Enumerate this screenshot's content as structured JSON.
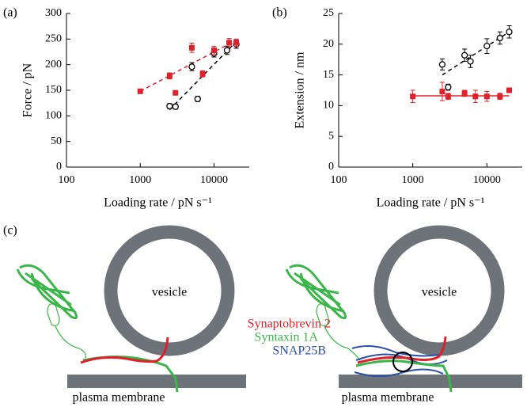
{
  "chart_data": [
    {
      "type": "scatter",
      "panel_label": "(a)",
      "y_label": "Force / pN",
      "x_label": "Loading rate / pN s⁻¹",
      "xscale": "log",
      "xlim": [
        100,
        30000
      ],
      "xticks": [
        100,
        1000,
        10000
      ],
      "ylim": [
        0,
        300
      ],
      "yticks": [
        0,
        50,
        100,
        150,
        200,
        250,
        300
      ],
      "series": [
        {
          "color": "#000000",
          "marker": "circle",
          "x": [
            2500,
            3000,
            5000,
            6000,
            10000,
            15000,
            20000
          ],
          "values": [
            119,
            118,
            196,
            133,
            222,
            228,
            240
          ],
          "errors": [
            5,
            5,
            8,
            5,
            7,
            8,
            8
          ]
        },
        {
          "color": "#e0202a",
          "marker": "square",
          "x": [
            1000,
            2500,
            3000,
            5000,
            7000,
            10000,
            16000,
            20000
          ],
          "values": [
            148,
            178,
            145,
            233,
            182,
            228,
            243,
            243
          ],
          "errors": [
            3,
            6,
            4,
            9,
            6,
            8,
            8,
            7
          ]
        }
      ],
      "fits": [
        {
          "color": "#000000",
          "dash": true,
          "x": [
            2500,
            20000
          ],
          "values": [
            112,
            245
          ]
        },
        {
          "color": "#e0202a",
          "dash": true,
          "x": [
            1000,
            20000
          ],
          "values": [
            148,
            248
          ]
        }
      ]
    },
    {
      "type": "scatter",
      "panel_label": "(b)",
      "y_label": "Extension / nm",
      "x_label": "Loading rate / pN s⁻¹",
      "xscale": "log",
      "xlim": [
        100,
        30000
      ],
      "xticks": [
        100,
        1000,
        10000
      ],
      "ylim": [
        0,
        25
      ],
      "yticks": [
        0,
        5,
        10,
        15,
        20,
        25
      ],
      "series": [
        {
          "color": "#000000",
          "marker": "circle",
          "x": [
            2500,
            3000,
            5000,
            6000,
            10000,
            15000,
            20000
          ],
          "values": [
            16.7,
            13,
            18.2,
            17.2,
            19.7,
            21,
            22
          ],
          "errors": [
            0.9,
            0.5,
            1,
            1,
            1.2,
            1,
            1
          ]
        },
        {
          "color": "#e0202a",
          "marker": "square",
          "x": [
            1000,
            2500,
            3000,
            5000,
            7000,
            10000,
            15000,
            20000
          ],
          "values": [
            11.5,
            12.3,
            11.5,
            12,
            11.5,
            11.5,
            11.5,
            12.5
          ],
          "errors": [
            1,
            1.5,
            0.5,
            0.5,
            1,
            0.8,
            0.5,
            0.3
          ]
        }
      ],
      "fits": [
        {
          "color": "#000000",
          "dash": true,
          "x": [
            2500,
            20000
          ],
          "values": [
            15,
            22
          ]
        },
        {
          "color": "#e0202a",
          "dash": false,
          "x": [
            1000,
            20000
          ],
          "values": [
            11.6,
            11.6
          ]
        }
      ]
    }
  ],
  "diagram": {
    "panel_label": "(c)",
    "left": {
      "vesicle": "vesicle",
      "membrane": "plasma membrane"
    },
    "right": {
      "vesicle": "vesicle",
      "membrane": "plasma membrane"
    },
    "legend": [
      "Synaptobrevin 2",
      "Syntaxin 1A",
      "SNAP25B"
    ]
  }
}
